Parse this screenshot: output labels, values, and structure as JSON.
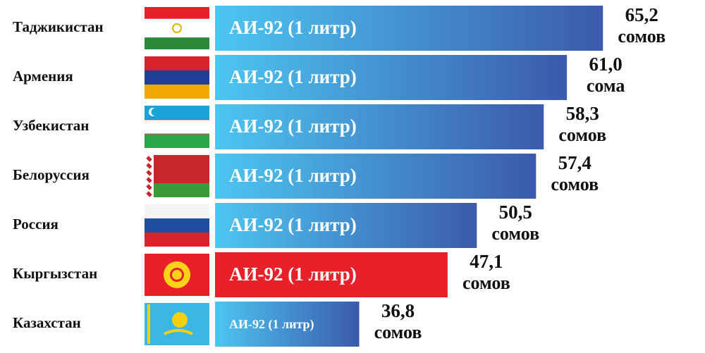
{
  "chart_data": {
    "type": "bar",
    "categories": [
      "Таджикистан",
      "Армения",
      "Узбекистан",
      "Белоруссия",
      "Россия",
      "Кыргызстан",
      "Казахстан"
    ],
    "values": [
      65.2,
      61.0,
      58.3,
      57.4,
      50.5,
      47.1,
      36.8
    ],
    "value_labels": [
      "65,2",
      "61,0",
      "58,3",
      "57,4",
      "50,5",
      "47,1",
      "36,8"
    ],
    "units": [
      "сомов",
      "сома",
      "сомов",
      "сомов",
      "сомов",
      "сомов",
      "сомов"
    ],
    "bar_label": "АИ-92 (1 литр)",
    "colors": [
      [
        "#4cc6f0",
        "#3b5aad"
      ],
      [
        "#4cc6f0",
        "#3b5aad"
      ],
      [
        "#4cc6f0",
        "#3b5aad"
      ],
      [
        "#4cc6f0",
        "#3b5aad"
      ],
      [
        "#4cc6f0",
        "#3b5aad"
      ],
      [
        "#e8202a",
        "#e8202a"
      ],
      [
        "#4cc6f0",
        "#3b5aad"
      ]
    ]
  }
}
